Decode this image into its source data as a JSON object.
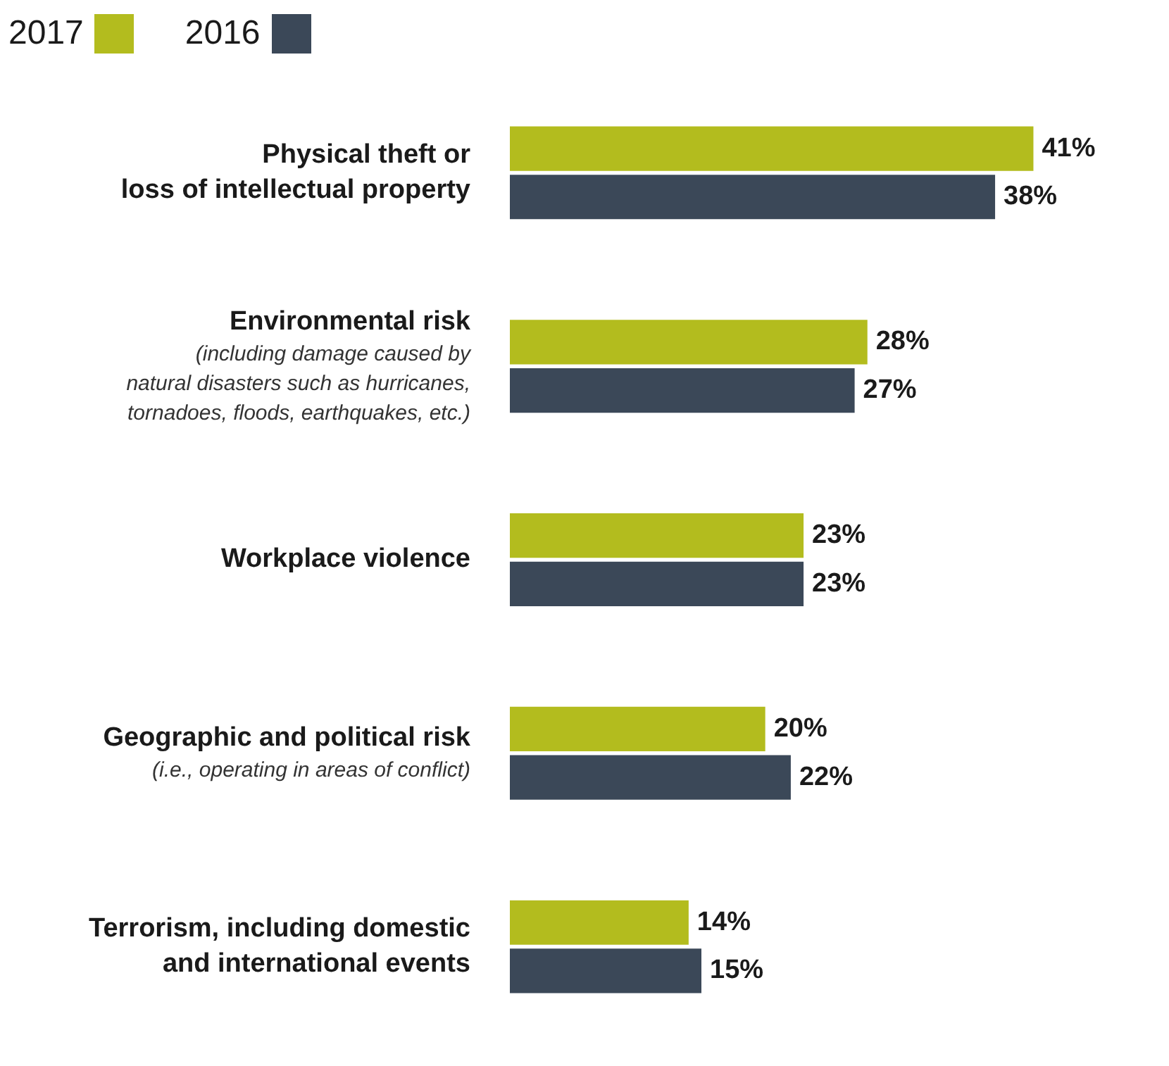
{
  "chart_data": {
    "type": "bar",
    "orientation": "horizontal",
    "legend": "top left",
    "categories": [
      "Physical theft or\nloss of intellectual property",
      "Environmental risk\n(including damage caused by\nnatural disasters such as hurricanes,\ntornadoes, floods, earthquakes, etc.)",
      "Workplace violence",
      "Geographic and political risk\n(i.e., operating in areas of conflict)",
      "Terrorism, including domestic\nand international events"
    ],
    "series": [
      {
        "name": "2017",
        "color": "#b3bc1e",
        "values": [
          41,
          28,
          23,
          20,
          14
        ],
        "value_labels": [
          "41%",
          "28%",
          "23%",
          "20%",
          "14%"
        ]
      },
      {
        "name": "2016",
        "color": "#3b4858",
        "values": [
          38,
          27,
          23,
          22,
          15
        ],
        "value_labels": [
          "38%",
          "27%",
          "23%",
          "22%",
          "15%"
        ]
      }
    ]
  }
}
